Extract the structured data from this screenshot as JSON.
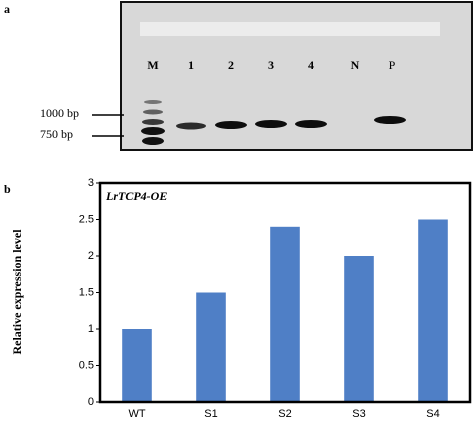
{
  "panel_a": {
    "label": "a",
    "lanes": [
      "M",
      "1",
      "2",
      "3",
      "4",
      "N",
      "P"
    ],
    "markers": [
      "1000 bp",
      "750 bp"
    ]
  },
  "chart_data": {
    "type": "bar",
    "panel_label": "b",
    "annotation": "LrTCP4-OE",
    "y_label": "Relative expression level",
    "categories": [
      "WT",
      "S1",
      "S2",
      "S3",
      "S4"
    ],
    "values": [
      1,
      1.5,
      2.4,
      2,
      2.5
    ],
    "color": "#4f7fc6",
    "ylim": [
      0,
      3
    ],
    "yticks": [
      0,
      0.5,
      1,
      1.5,
      2,
      2.5,
      3
    ],
    "grid": false
  }
}
